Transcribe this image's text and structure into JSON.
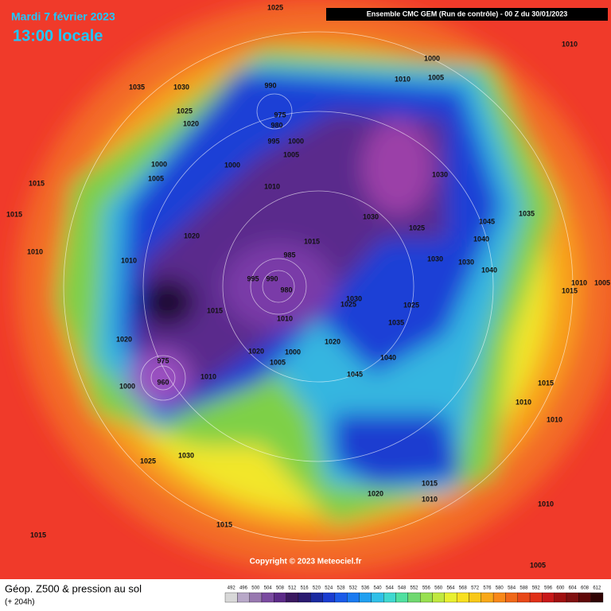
{
  "header": {
    "date": "Mardi 7 février 2023",
    "time": "13:00 locale",
    "model": "Ensemble CMC GEM  (Run de contrôle)  -  00 Z du 30/01/2023"
  },
  "map": {
    "isobar_labels": [
      1025,
      1010,
      1000,
      1010,
      1005,
      1035,
      1030,
      990,
      1025,
      1020,
      975,
      980,
      995,
      1000,
      1005,
      1000,
      1005,
      1000,
      1030,
      1010,
      1015,
      1015,
      1030,
      1045,
      1035,
      1025,
      1040,
      1020,
      1015,
      985,
      1010,
      1010,
      1030,
      1030,
      1040,
      995,
      990,
      980,
      1010,
      1005,
      1015,
      1030,
      1025,
      1025,
      1015,
      1010,
      1035,
      1020,
      1020,
      1020,
      1000,
      1040,
      1005,
      1045,
      975,
      960,
      1000,
      1010,
      1015,
      1010,
      1010,
      1025,
      1030,
      1015,
      1020,
      1010,
      1010,
      1015,
      1015,
      1005
    ],
    "copyright": "Copyright © 2023 Meteociel.fr"
  },
  "footer": {
    "title": "Géop. Z500 & pression au sol",
    "lead": "(+ 204h)"
  },
  "colorbar": {
    "ticks": [
      492,
      496,
      500,
      504,
      508,
      512,
      516,
      520,
      524,
      528,
      532,
      536,
      540,
      544,
      548,
      552,
      556,
      560,
      564,
      568,
      572,
      576,
      580,
      584,
      588,
      592,
      596,
      600,
      604,
      608,
      612
    ]
  }
}
